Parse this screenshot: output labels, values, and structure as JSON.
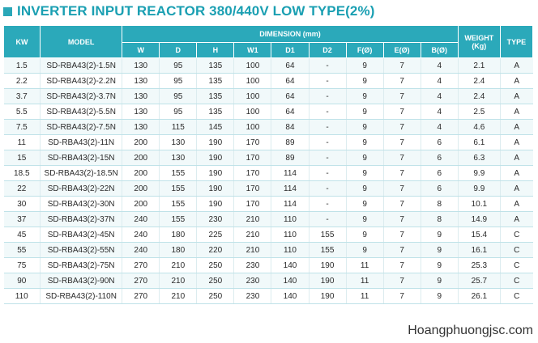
{
  "title": "INVERTER INPUT REACTOR 380/440V LOW TYPE(2%)",
  "headers": {
    "kw": "KW",
    "model": "MODEL",
    "dimension": "DIMENSION (mm)",
    "weight": "WEIGHT (Kg)",
    "type": "TYPE",
    "dims": [
      "W",
      "D",
      "H",
      "W1",
      "D1",
      "D2",
      "F(Ø)",
      "E(Ø)",
      "B(Ø)"
    ]
  },
  "rows": [
    [
      "1.5",
      "SD-RBA43(2)-1.5N",
      "130",
      "95",
      "135",
      "100",
      "64",
      "-",
      "9",
      "7",
      "4",
      "2.1",
      "A"
    ],
    [
      "2.2",
      "SD-RBA43(2)-2.2N",
      "130",
      "95",
      "135",
      "100",
      "64",
      "-",
      "9",
      "7",
      "4",
      "2.4",
      "A"
    ],
    [
      "3.7",
      "SD-RBA43(2)-3.7N",
      "130",
      "95",
      "135",
      "100",
      "64",
      "-",
      "9",
      "7",
      "4",
      "2.4",
      "A"
    ],
    [
      "5.5",
      "SD-RBA43(2)-5.5N",
      "130",
      "95",
      "135",
      "100",
      "64",
      "-",
      "9",
      "7",
      "4",
      "2.5",
      "A"
    ],
    [
      "7.5",
      "SD-RBA43(2)-7.5N",
      "130",
      "115",
      "145",
      "100",
      "84",
      "-",
      "9",
      "7",
      "4",
      "4.6",
      "A"
    ],
    [
      "11",
      "SD-RBA43(2)-11N",
      "200",
      "130",
      "190",
      "170",
      "89",
      "-",
      "9",
      "7",
      "6",
      "6.1",
      "A"
    ],
    [
      "15",
      "SD-RBA43(2)-15N",
      "200",
      "130",
      "190",
      "170",
      "89",
      "-",
      "9",
      "7",
      "6",
      "6.3",
      "A"
    ],
    [
      "18.5",
      "SD-RBA43(2)-18.5N",
      "200",
      "155",
      "190",
      "170",
      "114",
      "-",
      "9",
      "7",
      "6",
      "9.9",
      "A"
    ],
    [
      "22",
      "SD-RBA43(2)-22N",
      "200",
      "155",
      "190",
      "170",
      "114",
      "-",
      "9",
      "7",
      "6",
      "9.9",
      "A"
    ],
    [
      "30",
      "SD-RBA43(2)-30N",
      "200",
      "155",
      "190",
      "170",
      "114",
      "-",
      "9",
      "7",
      "8",
      "10.1",
      "A"
    ],
    [
      "37",
      "SD-RBA43(2)-37N",
      "240",
      "155",
      "230",
      "210",
      "110",
      "-",
      "9",
      "7",
      "8",
      "14.9",
      "A"
    ],
    [
      "45",
      "SD-RBA43(2)-45N",
      "240",
      "180",
      "225",
      "210",
      "110",
      "155",
      "9",
      "7",
      "9",
      "15.4",
      "C"
    ],
    [
      "55",
      "SD-RBA43(2)-55N",
      "240",
      "180",
      "220",
      "210",
      "110",
      "155",
      "9",
      "7",
      "9",
      "16.1",
      "C"
    ],
    [
      "75",
      "SD-RBA43(2)-75N",
      "270",
      "210",
      "250",
      "230",
      "140",
      "190",
      "11",
      "7",
      "9",
      "25.3",
      "C"
    ],
    [
      "90",
      "SD-RBA43(2)-90N",
      "270",
      "210",
      "250",
      "230",
      "140",
      "190",
      "11",
      "7",
      "9",
      "25.7",
      "C"
    ],
    [
      "110",
      "SD-RBA43(2)-110N",
      "270",
      "210",
      "250",
      "230",
      "140",
      "190",
      "11",
      "7",
      "9",
      "26.1",
      "C"
    ]
  ],
  "site_label": "Hoangphuongjsc.com",
  "colors": {
    "header_bg": "#2ba9ba",
    "title": "#1a9fb2"
  }
}
